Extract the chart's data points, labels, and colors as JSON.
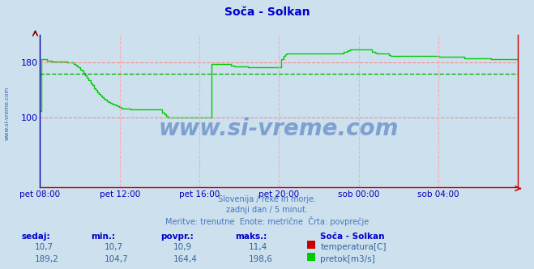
{
  "title": "Soča - Solkan",
  "title_color": "#0000cc",
  "bg_color": "#cce0ee",
  "plot_bg_color": "#cce0ee",
  "line_color": "#00cc00",
  "avg_line_color": "#00bb00",
  "avg_value": 164.4,
  "y_min": 0,
  "y_max": 220,
  "y_ticks": [
    100,
    180
  ],
  "y_tick_color": "#0000bb",
  "red_dashed_color": "#ff8888",
  "red_dashed_values": [
    100,
    180
  ],
  "x_labels": [
    "pet 08:00",
    "pet 12:00",
    "pet 16:00",
    "pet 20:00",
    "sob 00:00",
    "sob 04:00"
  ],
  "x_label_color": "#0000bb",
  "watermark": "www.si-vreme.com",
  "watermark_color": "#2255aa",
  "subtitle1": "Slovenija / reke in morje.",
  "subtitle2": "zadnji dan / 5 minut.",
  "subtitle3": "Meritve: trenutne  Enote: metrične  Črta: povprečje",
  "subtitle_color": "#4477bb",
  "table_header_color": "#0000cc",
  "table_value_color": "#336699",
  "sidebar_text": "www.si-vreme.com",
  "sidebar_color": "#3366aa",
  "flow_data": [
    110,
    185,
    185,
    185,
    183,
    183,
    183,
    182,
    182,
    182,
    182,
    181,
    181,
    181,
    181,
    181,
    180,
    180,
    180,
    180,
    178,
    177,
    175,
    173,
    170,
    168,
    165,
    162,
    158,
    155,
    150,
    147,
    143,
    140,
    137,
    135,
    132,
    130,
    128,
    126,
    124,
    123,
    122,
    120,
    119,
    118,
    117,
    116,
    115,
    114,
    113,
    113,
    113,
    113,
    112,
    112,
    112,
    112,
    112,
    112,
    112,
    112,
    112,
    112,
    112,
    112,
    112,
    112,
    112,
    112,
    112,
    112,
    112,
    108,
    105,
    103,
    101,
    100,
    100,
    100,
    100,
    100,
    100,
    100,
    100,
    100,
    100,
    100,
    100,
    100,
    100,
    100,
    100,
    100,
    100,
    100,
    100,
    100,
    100,
    100,
    100,
    100,
    178,
    178,
    178,
    178,
    178,
    178,
    178,
    178,
    178,
    178,
    178,
    178,
    176,
    176,
    175,
    175,
    175,
    175,
    175,
    175,
    174,
    174,
    173,
    173,
    173,
    173,
    173,
    173,
    173,
    173,
    173,
    173,
    173,
    173,
    173,
    173,
    173,
    173,
    173,
    173,
    173,
    173,
    185,
    190,
    192,
    193,
    193,
    193,
    193,
    193,
    193,
    193,
    193,
    193,
    193,
    193,
    193,
    193,
    193,
    193,
    193,
    193,
    193,
    193,
    193,
    193,
    193,
    193,
    193,
    193,
    193,
    193,
    193,
    193,
    193,
    193,
    193,
    193,
    193,
    195,
    196,
    197,
    198,
    199,
    199,
    199,
    199,
    199,
    199,
    199,
    199,
    199,
    199,
    199,
    199,
    199,
    196,
    195,
    194,
    193,
    193,
    193,
    193,
    193,
    193,
    193,
    191,
    190,
    190,
    190,
    190,
    190,
    190,
    190,
    190,
    190,
    190,
    190,
    190,
    190,
    190,
    190,
    190,
    190,
    190,
    190,
    190,
    190,
    190,
    190,
    190,
    190,
    190,
    190,
    190,
    190,
    188,
    188,
    188,
    188,
    188,
    188,
    188,
    188,
    188,
    188,
    188,
    188,
    188,
    188,
    188,
    186,
    186,
    186,
    186,
    186,
    186,
    186,
    186,
    186,
    186,
    186,
    186,
    186,
    186,
    186,
    186,
    185,
    185,
    185,
    185,
    185,
    185,
    185,
    185,
    185,
    185,
    185,
    185,
    185,
    185,
    185,
    185,
    185
  ]
}
